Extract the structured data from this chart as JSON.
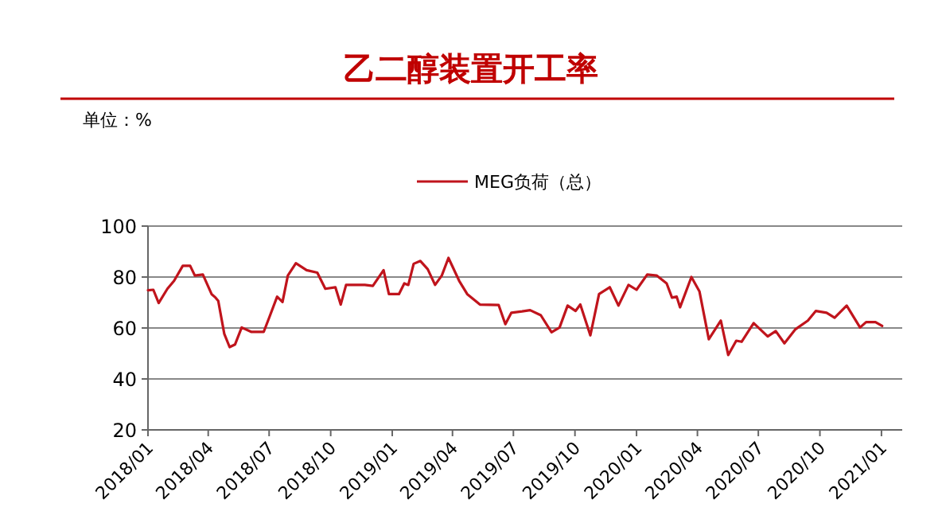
{
  "chart_data": {
    "type": "line",
    "title": "乙二醇装置开工率",
    "annotations": [
      "单位：%"
    ],
    "xlim": [
      "2018-01-01",
      "2021-02-01"
    ],
    "xticks": [
      {
        "value": "2018-01-01",
        "label": "2018/01"
      },
      {
        "value": "2018-04-01",
        "label": "2018/04"
      },
      {
        "value": "2018-07-01",
        "label": "2018/07"
      },
      {
        "value": "2018-10-01",
        "label": "2018/10"
      },
      {
        "value": "2019-01-01",
        "label": "2019/01"
      },
      {
        "value": "2019-04-01",
        "label": "2019/04"
      },
      {
        "value": "2019-07-01",
        "label": "2019/07"
      },
      {
        "value": "2019-10-01",
        "label": "2019/10"
      },
      {
        "value": "2020-01-01",
        "label": "2020/01"
      },
      {
        "value": "2020-04-01",
        "label": "2020/04"
      },
      {
        "value": "2020-07-01",
        "label": "2020/07"
      },
      {
        "value": "2020-10-01",
        "label": "2020/10"
      },
      {
        "value": "2021-01-01",
        "label": "2021/01"
      }
    ],
    "ylim": [
      20,
      100
    ],
    "yticks": [
      20,
      40,
      60,
      80,
      100
    ],
    "grid": "y",
    "legend": "top",
    "marker": "none",
    "line_style": "solid",
    "series": [
      {
        "name": "MEG负荷（总）",
        "color": "#c0141c",
        "x": [
          "2018-01-01",
          "2018-01-09",
          "2018-01-17",
          "2018-01-30",
          "2018-02-09",
          "2018-02-22",
          "2018-03-05",
          "2018-03-12",
          "2018-03-24",
          "2018-04-06",
          "2018-04-12",
          "2018-04-16",
          "2018-04-25",
          "2018-05-03",
          "2018-05-11",
          "2018-05-21",
          "2018-06-04",
          "2018-06-23",
          "2018-07-01",
          "2018-07-13",
          "2018-07-21",
          "2018-07-29",
          "2018-08-10",
          "2018-08-26",
          "2018-09-11",
          "2018-09-23",
          "2018-10-08",
          "2018-10-16",
          "2018-10-24",
          "2018-11-21",
          "2018-12-03",
          "2018-12-19",
          "2018-12-27",
          "2019-01-11",
          "2019-01-19",
          "2019-01-25",
          "2019-02-02",
          "2019-02-12",
          "2019-02-23",
          "2019-03-06",
          "2019-03-16",
          "2019-03-26",
          "2019-04-11",
          "2019-04-23",
          "2019-05-12",
          "2019-06-09",
          "2019-06-19",
          "2019-06-28",
          "2019-07-14",
          "2019-07-26",
          "2019-08-11",
          "2019-08-27",
          "2019-09-08",
          "2019-09-20",
          "2019-10-02",
          "2019-10-09",
          "2019-10-24",
          "2019-11-06",
          "2019-11-22",
          "2019-12-05",
          "2019-12-20",
          "2020-01-01",
          "2020-01-17",
          "2020-01-31",
          "2020-02-15",
          "2020-02-23",
          "2020-03-01",
          "2020-03-06",
          "2020-03-23",
          "2020-04-04",
          "2020-04-18",
          "2020-05-06",
          "2020-05-17",
          "2020-05-29",
          "2020-06-06",
          "2020-06-24",
          "2020-07-15",
          "2020-07-27",
          "2020-08-09",
          "2020-08-25",
          "2020-09-13",
          "2020-09-25",
          "2020-10-11",
          "2020-10-23",
          "2020-11-10",
          "2020-11-30",
          "2020-12-09",
          "2020-12-23",
          "2021-01-02"
        ],
        "values": [
          74.8,
          75,
          69.8,
          75.4,
          78.5,
          84.4,
          84.4,
          80.6,
          81,
          73.3,
          71.9,
          70.6,
          57.7,
          52.5,
          53.5,
          60.2,
          58.5,
          58.5,
          64,
          72.3,
          70.2,
          80.6,
          85.4,
          82.7,
          81.7,
          75.4,
          76,
          69.2,
          76.9,
          76.9,
          76.5,
          82.7,
          73.3,
          73.3,
          77.5,
          76.9,
          85.2,
          86.3,
          83.1,
          76.9,
          80.6,
          87.5,
          78.5,
          73.3,
          69.2,
          69,
          61.5,
          66,
          66.5,
          67,
          65,
          58.3,
          60.2,
          68.8,
          66.7,
          69.2,
          57.1,
          73.3,
          76,
          68.8,
          76.9,
          75,
          81,
          80.6,
          77.5,
          71.9,
          72.3,
          68.1,
          80,
          74.4,
          55.6,
          62.9,
          49.4,
          55,
          54.6,
          61.9,
          56.7,
          58.8,
          54,
          59.4,
          62.9,
          66.7,
          66,
          64,
          68.8,
          60.2,
          62.3,
          62.3,
          60.8
        ]
      }
    ]
  }
}
